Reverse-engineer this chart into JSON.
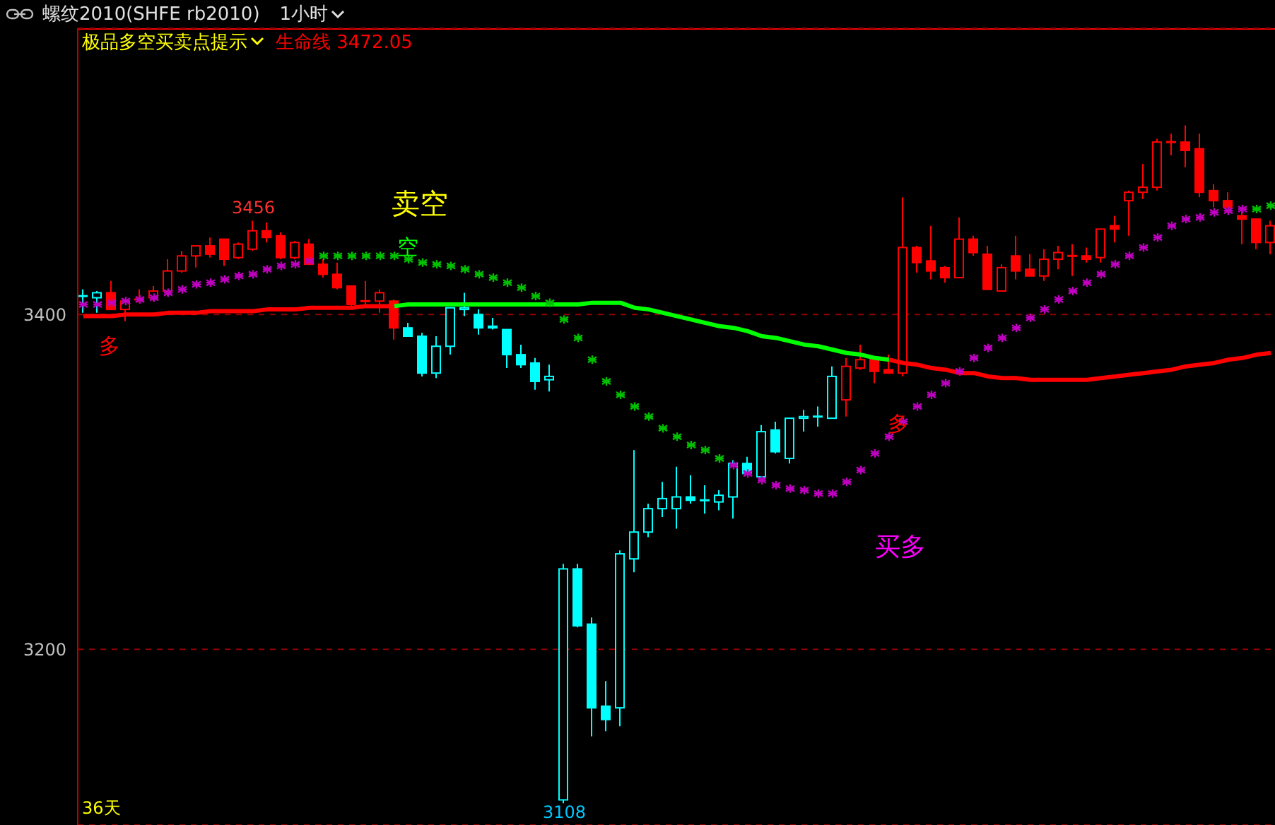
{
  "chart_data": {
    "type": "candlestick",
    "title": "螺纹2010(SHFE rb2010)",
    "subtitle": "1小时",
    "legend_title": "极品多空买卖点提示",
    "legend": "top left",
    "grid": "y",
    "tick_labels": "y",
    "categories": [
      null,
      null,
      null,
      null,
      null,
      null,
      null,
      null,
      null,
      null,
      null,
      null,
      null,
      null,
      null,
      null,
      null,
      null,
      null,
      null,
      null,
      null,
      null,
      null,
      null,
      null,
      null,
      null,
      null,
      null,
      null,
      null,
      null,
      null,
      null,
      null,
      null,
      null,
      null,
      null,
      null,
      null,
      null,
      null,
      null,
      null,
      null,
      null,
      null,
      null,
      null,
      null,
      null,
      null,
      null,
      null,
      null,
      null,
      null,
      null,
      null,
      null,
      null,
      null,
      null,
      null,
      null,
      null,
      null,
      null,
      null,
      null,
      null,
      null,
      null,
      null,
      null,
      null,
      null,
      null,
      null,
      null,
      null,
      null,
      null
    ],
    "ylim": [
      3095,
      3571
    ],
    "yticks": [
      3200,
      3400
    ],
    "ohlc": [
      [
        3411,
        3415,
        3401,
        3411
      ],
      [
        3410,
        3414,
        3401,
        3413
      ],
      [
        3413,
        3420,
        3403,
        3403
      ],
      [
        3403,
        3409,
        3396,
        3408
      ],
      [
        3409,
        3415,
        3407,
        3409
      ],
      [
        3410,
        3417,
        3408,
        3414
      ],
      [
        3414,
        3433,
        3411,
        3426
      ],
      [
        3426,
        3438,
        3425,
        3435
      ],
      [
        3435,
        3441,
        3428,
        3441
      ],
      [
        3441,
        3446,
        3434,
        3436
      ],
      [
        3445,
        3445,
        3429,
        3433
      ],
      [
        3434,
        3443,
        3433,
        3442
      ],
      [
        3439,
        3456,
        3438,
        3450
      ],
      [
        3450,
        3455,
        3443,
        3446
      ],
      [
        3447,
        3449,
        3433,
        3434
      ],
      [
        3434,
        3444,
        3433,
        3443
      ],
      [
        3442,
        3445,
        3430,
        3430
      ],
      [
        3430,
        3433,
        3422,
        3424
      ],
      [
        3424,
        3431,
        3415,
        3416
      ],
      [
        3417,
        3417,
        3403,
        3406
      ],
      [
        3408,
        3420,
        3405,
        3408
      ],
      [
        3408,
        3415,
        3401,
        3413
      ],
      [
        3408,
        3409,
        3385,
        3392
      ],
      [
        3392,
        3395,
        3387,
        3387
      ],
      [
        3387,
        3389,
        3363,
        3365
      ],
      [
        3365,
        3387,
        3362,
        3381
      ],
      [
        3381,
        3404,
        3376,
        3404
      ],
      [
        3403,
        3413,
        3399,
        3404
      ],
      [
        3400,
        3403,
        3388,
        3392
      ],
      [
        3393,
        3398,
        3391,
        3392
      ],
      [
        3391,
        3391,
        3368,
        3376
      ],
      [
        3376,
        3382,
        3368,
        3370
      ],
      [
        3371,
        3374,
        3355,
        3360
      ],
      [
        3361,
        3370,
        3354,
        3363
      ],
      [
        3110,
        3251,
        3108,
        3248
      ],
      [
        3248,
        3251,
        3213,
        3214
      ],
      [
        3215,
        3219,
        3148,
        3165
      ],
      [
        3166,
        3181,
        3151,
        3158
      ],
      [
        3165,
        3259,
        3154,
        3257
      ],
      [
        3254,
        3319,
        3246,
        3270
      ],
      [
        3270,
        3287,
        3267,
        3284
      ],
      [
        3284,
        3300,
        3279,
        3290
      ],
      [
        3284,
        3309,
        3272,
        3291
      ],
      [
        3291,
        3304,
        3287,
        3289
      ],
      [
        3289,
        3298,
        3281,
        3289
      ],
      [
        3288,
        3295,
        3283,
        3292
      ],
      [
        3291,
        3313,
        3278,
        3311
      ],
      [
        3311,
        3315,
        3305,
        3305
      ],
      [
        3303,
        3334,
        3303,
        3330
      ],
      [
        3331,
        3336,
        3317,
        3318
      ],
      [
        3314,
        3338,
        3311,
        3338
      ],
      [
        3338,
        3343,
        3330,
        3339
      ],
      [
        3339,
        3345,
        3333,
        3339
      ],
      [
        3338,
        3369,
        3338,
        3363
      ],
      [
        3349,
        3374,
        3339,
        3369
      ],
      [
        3368,
        3382,
        3367,
        3373
      ],
      [
        3373,
        3373,
        3359,
        3366
      ],
      [
        3367,
        3376,
        3365,
        3365
      ],
      [
        3365,
        3470,
        3363,
        3440
      ],
      [
        3440,
        3441,
        3425,
        3431
      ],
      [
        3432,
        3453,
        3421,
        3426
      ],
      [
        3428,
        3429,
        3419,
        3422
      ],
      [
        3422,
        3458,
        3422,
        3445
      ],
      [
        3445,
        3447,
        3435,
        3437
      ],
      [
        3436,
        3441,
        3415,
        3415
      ],
      [
        3414,
        3430,
        3414,
        3428
      ],
      [
        3435,
        3447,
        3421,
        3426
      ],
      [
        3427,
        3436,
        3423,
        3423
      ],
      [
        3423,
        3439,
        3420,
        3433
      ],
      [
        3433,
        3441,
        3427,
        3437
      ],
      [
        3435,
        3442,
        3423,
        3435
      ],
      [
        3435,
        3440,
        3431,
        3433
      ],
      [
        3434,
        3451,
        3431,
        3451
      ],
      [
        3453,
        3459,
        3443,
        3451
      ],
      [
        3468,
        3474,
        3447,
        3473
      ],
      [
        3473,
        3490,
        3469,
        3476
      ],
      [
        3476,
        3505,
        3474,
        3503
      ],
      [
        3503,
        3508,
        3495,
        3503
      ],
      [
        3503,
        3513,
        3488,
        3498
      ],
      [
        3499,
        3508,
        3470,
        3473
      ],
      [
        3474,
        3478,
        3464,
        3468
      ],
      [
        3468,
        3473,
        3464,
        3464
      ],
      [
        3459,
        3462,
        3442,
        3457
      ],
      [
        3457,
        3457,
        3439,
        3443
      ],
      [
        3443,
        3456,
        3436,
        3453
      ]
    ],
    "colors": [
      "#00ffff",
      "#00ffff",
      "#ff0000",
      "#ff0000",
      "#ff0000",
      "#ff0000",
      "#ff0000",
      "#ff0000",
      "#ff0000",
      "#ff0000",
      "#ff0000",
      "#ff0000",
      "#ff0000",
      "#ff0000",
      "#ff0000",
      "#ff0000",
      "#ff0000",
      "#ff0000",
      "#ff0000",
      "#ff0000",
      "#ff0000",
      "#ff0000",
      "#ff0000",
      "#00ffff",
      "#00ffff",
      "#00ffff",
      "#00ffff",
      "#00ffff",
      "#00ffff",
      "#00ffff",
      "#00ffff",
      "#00ffff",
      "#00ffff",
      "#00ffff",
      "#00ffff",
      "#00ffff",
      "#00ffff",
      "#00ffff",
      "#00ffff",
      "#00ffff",
      "#00ffff",
      "#00ffff",
      "#00ffff",
      "#00ffff",
      "#00ffff",
      "#00ffff",
      "#00ffff",
      "#00ffff",
      "#00ffff",
      "#00ffff",
      "#00ffff",
      "#00ffff",
      "#00ffff",
      "#00ffff",
      "#ff0000",
      "#ff0000",
      "#ff0000",
      "#ff0000",
      "#ff0000",
      "#ff0000",
      "#ff0000",
      "#ff0000",
      "#ff0000",
      "#ff0000",
      "#ff0000",
      "#ff0000",
      "#ff0000",
      "#ff0000",
      "#ff0000",
      "#ff0000",
      "#ff0000",
      "#ff0000",
      "#ff0000",
      "#ff0000",
      "#ff0000",
      "#ff0000",
      "#ff0000",
      "#ff0000",
      "#ff0000",
      "#ff0000",
      "#ff0000",
      "#ff0000",
      "#ff0000",
      "#ff0000",
      "#ff0000"
    ],
    "series": [
      {
        "name": "生命线",
        "type": "line",
        "color": "#ff0000",
        "values": [
          3399,
          3399,
          3399,
          3400,
          3400,
          3400,
          3401,
          3401,
          3401,
          3402,
          3402,
          3402,
          3402,
          3403,
          3403,
          3403,
          3404,
          3404,
          3404,
          3404,
          3405,
          3405,
          3405,
          null,
          null,
          null,
          null,
          null,
          null,
          null,
          null,
          null,
          null,
          null,
          null,
          null,
          null,
          null,
          null,
          null,
          null,
          null,
          null,
          null,
          null,
          null,
          null,
          null,
          null,
          null,
          null,
          null,
          null,
          null,
          null,
          null,
          null,
          3373,
          3371,
          3370,
          3368,
          3367,
          3365,
          3365,
          3363,
          3362,
          3362,
          3361,
          3361,
          3361,
          3361,
          3361,
          3362,
          3363,
          3364,
          3365,
          3366,
          3367,
          3369,
          3370,
          3371,
          3373,
          3374,
          3376,
          3377
        ]
      },
      {
        "type": "line",
        "color": "#00ff00",
        "values": [
          null,
          null,
          null,
          null,
          null,
          null,
          null,
          null,
          null,
          null,
          null,
          null,
          null,
          null,
          null,
          null,
          null,
          null,
          null,
          null,
          null,
          null,
          3405,
          3406,
          3406,
          3406,
          3406,
          3406,
          3406,
          3406,
          3406,
          3406,
          3406,
          3406,
          3406,
          3406,
          3407,
          3407,
          3407,
          3404,
          3403,
          3401,
          3399,
          3397,
          3395,
          3393,
          3392,
          3390,
          3387,
          3386,
          3384,
          3382,
          3381,
          3379,
          3377,
          3376,
          3374,
          3373,
          null,
          null,
          null,
          null,
          null,
          null,
          null,
          null,
          null,
          null,
          null,
          null,
          null,
          null,
          null,
          null,
          null,
          null,
          null,
          null,
          null,
          null,
          null,
          null,
          null,
          null,
          null
        ]
      },
      {
        "type": "scatter",
        "marker": "cross",
        "color": "#00c000",
        "values": [
          null,
          null,
          null,
          null,
          null,
          null,
          null,
          null,
          null,
          null,
          null,
          null,
          null,
          null,
          null,
          null,
          null,
          3435,
          3435,
          3435,
          3435,
          3435,
          3435,
          3433,
          3431,
          3430,
          3429,
          3427,
          3424,
          3422,
          3419,
          3416,
          3411,
          3407,
          3397,
          3386,
          3373,
          3360,
          3352,
          3345,
          3339,
          3332,
          3327,
          3322,
          3319,
          3314,
          null,
          null,
          null,
          null,
          null,
          null,
          null,
          null,
          null,
          null,
          null,
          null,
          null,
          null,
          null,
          null,
          null,
          null,
          null,
          null,
          null,
          null,
          null,
          null,
          null,
          null,
          null,
          null,
          null,
          null,
          null,
          null,
          null,
          null,
          null,
          null,
          null,
          3463,
          3465
        ]
      },
      {
        "type": "scatter",
        "marker": "cross",
        "color": "#c000c0",
        "values": [
          3406,
          3406,
          3407,
          3408,
          3409,
          3410,
          3413,
          3415,
          3418,
          3419,
          3421,
          3423,
          3424,
          3427,
          3429,
          3430,
          3432,
          null,
          null,
          null,
          null,
          null,
          null,
          null,
          null,
          null,
          null,
          null,
          null,
          null,
          null,
          null,
          null,
          null,
          null,
          null,
          null,
          null,
          null,
          null,
          null,
          null,
          null,
          null,
          null,
          null,
          3310,
          3305,
          3301,
          3298,
          3296,
          3295,
          3293,
          3293,
          3300,
          3307,
          3317,
          3327,
          3336,
          3345,
          3352,
          3359,
          3366,
          3374,
          3380,
          3386,
          3392,
          3398,
          3403,
          3409,
          3414,
          3419,
          3424,
          3430,
          3435,
          3440,
          3446,
          3453,
          3457,
          3458,
          3461,
          3462,
          3463,
          null,
          null
        ]
      }
    ],
    "annotations": [
      "3472.05",
      "3456",
      "3108",
      "卖空",
      "空",
      "多",
      "买多",
      "多",
      "36天"
    ]
  }
}
